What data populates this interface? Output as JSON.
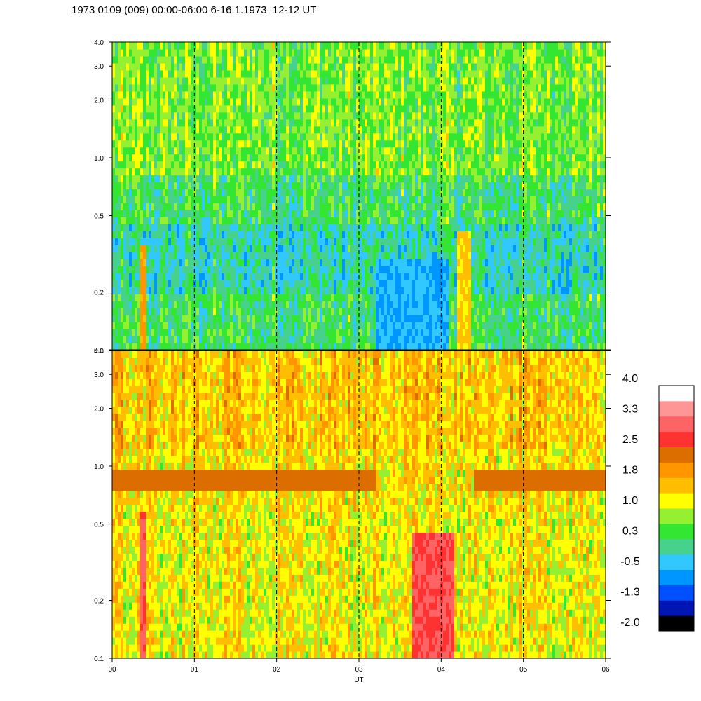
{
  "title": "1973 0109 (009) 00:00-06:00 6-16.1.1973  12-12 UT",
  "chart_data": {
    "type": "heatmap",
    "xlabel": "UT",
    "x_tick_labels": [
      "00",
      "01",
      "02",
      "03",
      "04",
      "05",
      "06"
    ],
    "x_range_hours": [
      0,
      6
    ],
    "dashed_vertical_lines_hours": [
      1,
      2,
      3,
      4,
      5
    ],
    "y_scale": "log",
    "y_range": [
      0.1,
      4.0
    ],
    "panels": [
      {
        "name": "upper",
        "y_tick_labels": [
          "0.1",
          "0.2",
          "0.5",
          "1.0",
          "2.0",
          "3.0",
          "4.0"
        ],
        "y_tick_values": [
          0.1,
          0.2,
          0.5,
          1.0,
          2.0,
          3.0,
          4.0
        ],
        "dominant_levels": "-0.5 to 1.0",
        "notable_features": [
          {
            "x_hours": [
              0.33,
              0.42
            ],
            "y": [
              0.1,
              0.35
            ],
            "level": 1.8
          },
          {
            "x_hours": [
              4.2,
              4.35
            ],
            "y": [
              0.1,
              0.4
            ],
            "level": 1.4
          },
          {
            "x_hours": [
              3.2,
              4.1
            ],
            "y": [
              0.1,
              0.3
            ],
            "level": -0.5
          }
        ]
      },
      {
        "name": "lower",
        "y_tick_labels": [
          "0.1",
          "0.2",
          "0.5",
          "1.0",
          "2.0",
          "3.0",
          "4.0"
        ],
        "y_tick_values": [
          0.1,
          0.2,
          0.5,
          1.0,
          2.0,
          3.0,
          4.0
        ],
        "dominant_levels": "1.0 to 1.8",
        "notable_features": [
          {
            "x_hours": [
              0.0,
              3.2
            ],
            "y": [
              0.75,
              0.95
            ],
            "level": 2.3
          },
          {
            "x_hours": [
              4.4,
              6.0
            ],
            "y": [
              0.75,
              0.95
            ],
            "level": 2.3
          },
          {
            "x_hours": [
              0.33,
              0.42
            ],
            "y": [
              0.1,
              0.6
            ],
            "level": 3.0
          },
          {
            "x_hours": [
              3.65,
              4.15
            ],
            "y": [
              0.1,
              0.45
            ],
            "level": 2.9
          }
        ]
      }
    ],
    "colorbar": {
      "labels": [
        "4.0",
        "3.3",
        "2.5",
        "1.8",
        "1.0",
        "0.3",
        "-0.5",
        "-1.3",
        "-2.0"
      ],
      "min": -2.0,
      "max": 4.0,
      "colors": [
        "#000000",
        "#0016b4",
        "#0050ff",
        "#0096ff",
        "#30c8ff",
        "#46d28c",
        "#32e632",
        "#96f032",
        "#ffff00",
        "#ffbe00",
        "#ff9600",
        "#dc6e00",
        "#ff3232",
        "#ff6464",
        "#ff9696",
        "#ffffff"
      ]
    }
  }
}
